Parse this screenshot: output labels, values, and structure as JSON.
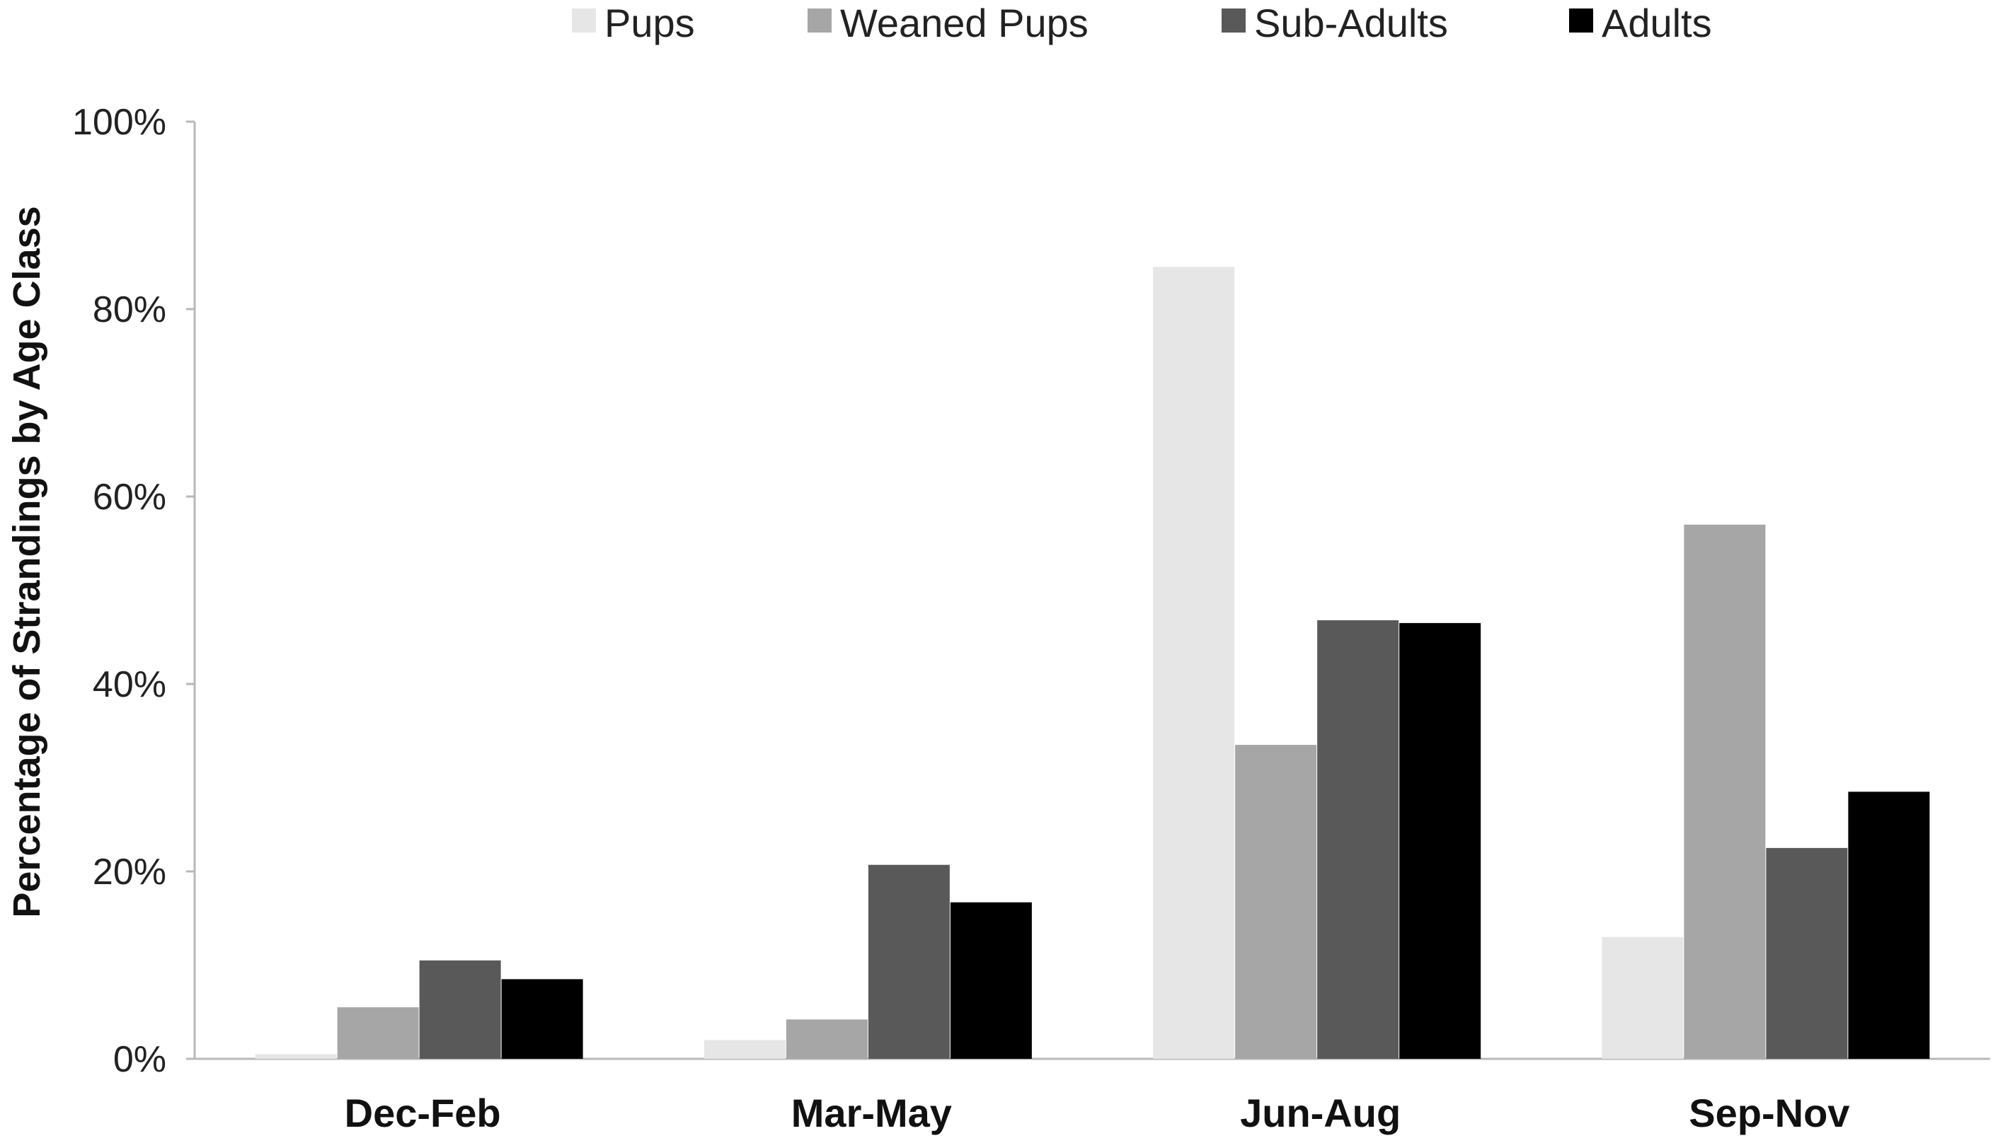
{
  "chart_data": {
    "type": "bar",
    "categories": [
      "Dec-Feb",
      "Mar-May",
      "Jun-Aug",
      "Sep-Nov"
    ],
    "series": [
      {
        "name": "Pups",
        "color": "#e6e6e6",
        "values": [
          0.5,
          2.0,
          84.5,
          13.0
        ]
      },
      {
        "name": "Weaned Pups",
        "color": "#a6a6a6",
        "values": [
          5.5,
          4.2,
          33.5,
          57.0
        ]
      },
      {
        "name": "Sub-Adults",
        "color": "#595959",
        "values": [
          10.5,
          20.7,
          46.8,
          22.5
        ]
      },
      {
        "name": "Adults",
        "color": "#000000",
        "values": [
          8.5,
          16.7,
          46.5,
          28.5
        ]
      }
    ],
    "ylabel": "Percentage of Strandings by Age Class",
    "xlabel": "",
    "ylim": [
      0,
      100
    ],
    "yticks": [
      0,
      20,
      40,
      60,
      80,
      100
    ],
    "ytick_labels": [
      "0%",
      "20%",
      "40%",
      "60%",
      "80%",
      "100%"
    ],
    "grid": false,
    "legend_position": "top-center"
  }
}
